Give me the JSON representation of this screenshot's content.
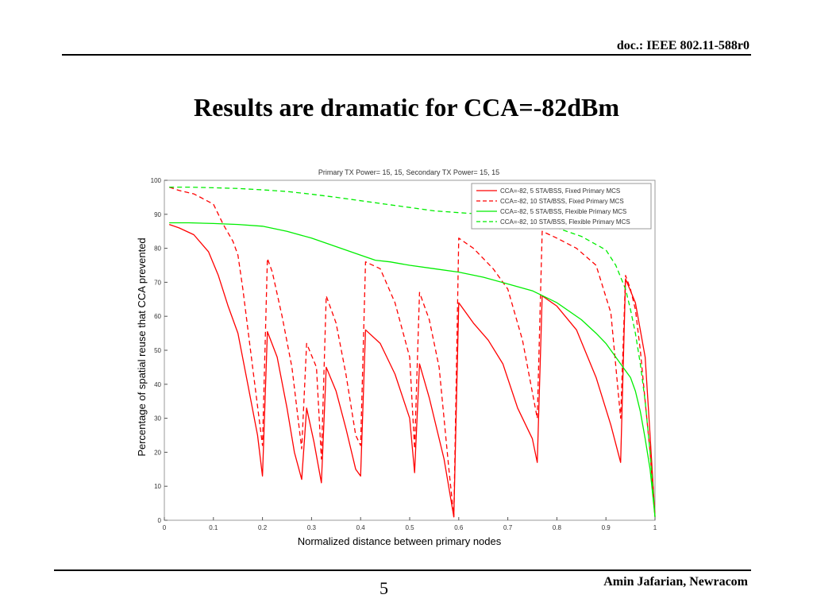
{
  "header": {
    "doc_id": "doc.: IEEE 802.11-588r0"
  },
  "slide": {
    "title": "Results are dramatic for CCA=-82dBm"
  },
  "footer": {
    "page_number": "5",
    "author": "Amin Jafarian, Newracom"
  },
  "chart_data": {
    "type": "line",
    "title": "Primary TX Power= 15, 15, Secondary TX Power= 15, 15",
    "xlabel": "Normalized distance between primary nodes",
    "ylabel": "Percentage of spatial reuse that CCA prevented",
    "xlim": [
      0,
      1
    ],
    "ylim": [
      0,
      100
    ],
    "xticks": [
      0,
      0.1,
      0.2,
      0.3,
      0.4,
      0.5,
      0.6,
      0.7,
      0.8,
      0.9,
      1
    ],
    "xtick_labels": [
      "0",
      "0.1",
      "0.2",
      "0.3",
      "0.4",
      "0.5",
      "0.6",
      "0.7",
      "0.8",
      "0.9",
      "1"
    ],
    "yticks": [
      0,
      10,
      20,
      30,
      40,
      50,
      60,
      70,
      80,
      90,
      100
    ],
    "ytick_labels": [
      "0",
      "10",
      "20",
      "30",
      "40",
      "50",
      "60",
      "70",
      "80",
      "90",
      "100"
    ],
    "grid": false,
    "legend_position": "top-right",
    "series": [
      {
        "name": "CCA=-82, 5 STA/BSS, Fixed Primary MCS",
        "color": "#ff0000",
        "dash": "solid",
        "x": [
          0.01,
          0.03,
          0.06,
          0.09,
          0.11,
          0.13,
          0.15,
          0.17,
          0.19,
          0.2,
          0.2,
          0.21,
          0.23,
          0.25,
          0.265,
          0.28,
          0.28,
          0.29,
          0.305,
          0.32,
          0.32,
          0.33,
          0.35,
          0.37,
          0.39,
          0.4,
          0.4,
          0.41,
          0.44,
          0.47,
          0.5,
          0.51,
          0.51,
          0.52,
          0.54,
          0.57,
          0.59,
          0.59,
          0.6,
          0.63,
          0.66,
          0.69,
          0.72,
          0.75,
          0.76,
          0.76,
          0.77,
          0.8,
          0.84,
          0.88,
          0.91,
          0.93,
          0.93,
          0.94,
          0.96,
          0.98,
          0.99,
          1.0
        ],
        "y": [
          87,
          86,
          84,
          79,
          72,
          63,
          55,
          40,
          25,
          13,
          13,
          55.5,
          48,
          33,
          20,
          12,
          12,
          33,
          23,
          11,
          11,
          45,
          38,
          27,
          15,
          13,
          13,
          56,
          52,
          43,
          30,
          14,
          14,
          46,
          36,
          18,
          1,
          1,
          64,
          58,
          53,
          46,
          33,
          24,
          17,
          17,
          66,
          63,
          56,
          42,
          28,
          17,
          17,
          71,
          64,
          48,
          25,
          1
        ]
      },
      {
        "name": "CCA=-82, 10 STA/BSS, Fixed Primary MCS",
        "color": "#ff0000",
        "dash": "dashed",
        "x": [
          0.01,
          0.03,
          0.06,
          0.1,
          0.12,
          0.14,
          0.15,
          0.16,
          0.18,
          0.2,
          0.2,
          0.21,
          0.22,
          0.24,
          0.26,
          0.28,
          0.28,
          0.29,
          0.31,
          0.32,
          0.32,
          0.33,
          0.35,
          0.37,
          0.39,
          0.4,
          0.4,
          0.41,
          0.44,
          0.47,
          0.5,
          0.51,
          0.51,
          0.52,
          0.54,
          0.56,
          0.58,
          0.59,
          0.59,
          0.6,
          0.63,
          0.67,
          0.7,
          0.73,
          0.76,
          0.76,
          0.77,
          0.8,
          0.84,
          0.88,
          0.91,
          0.93,
          0.93,
          0.94,
          0.95,
          0.96,
          0.97,
          0.98,
          0.99,
          1.0
        ],
        "y": [
          98,
          97,
          96,
          93,
          87,
          82,
          78,
          68,
          45,
          22,
          22,
          77,
          73,
          60,
          45,
          21,
          21,
          52,
          45,
          18,
          18,
          66,
          58,
          43,
          25,
          22,
          22,
          76,
          74,
          64,
          48,
          21,
          21,
          67,
          59,
          45,
          15,
          1,
          1,
          83,
          80,
          74,
          68,
          53,
          30,
          30,
          85,
          83,
          80,
          75,
          61,
          30,
          30,
          72,
          68,
          62,
          50,
          35,
          20,
          1
        ]
      },
      {
        "name": "CCA=-82, 5 STA/BSS, Flexible Primary MCS",
        "color": "#00ee00",
        "dash": "solid",
        "x": [
          0.01,
          0.05,
          0.1,
          0.15,
          0.2,
          0.25,
          0.3,
          0.35,
          0.4,
          0.43,
          0.46,
          0.5,
          0.55,
          0.6,
          0.65,
          0.7,
          0.75,
          0.8,
          0.85,
          0.88,
          0.9,
          0.92,
          0.94,
          0.95,
          0.96,
          0.97,
          0.98,
          0.99,
          0.995,
          1.0
        ],
        "y": [
          87.5,
          87.5,
          87.3,
          87,
          86.5,
          85,
          83,
          80.5,
          78,
          76.5,
          76,
          75,
          74,
          73,
          71.5,
          69.5,
          67.5,
          64,
          59,
          55,
          52,
          48,
          44,
          42,
          38,
          32,
          24,
          15,
          8,
          1
        ]
      },
      {
        "name": "CCA=-82, 10 STA/BSS, Flexible Primary MCS",
        "color": "#00ee00",
        "dash": "dashed",
        "x": [
          0.01,
          0.05,
          0.1,
          0.15,
          0.2,
          0.25,
          0.3,
          0.35,
          0.4,
          0.45,
          0.5,
          0.55,
          0.6,
          0.65,
          0.7,
          0.75,
          0.8,
          0.85,
          0.9,
          0.92,
          0.94,
          0.95,
          0.96,
          0.97,
          0.98,
          0.99,
          1.0
        ],
        "y": [
          98,
          98,
          97.8,
          97.6,
          97.2,
          96.7,
          95.9,
          95,
          94,
          93,
          92,
          91,
          90.5,
          90,
          89,
          87.5,
          86,
          83.5,
          79.5,
          75,
          68,
          62,
          55,
          46,
          35,
          20,
          1
        ]
      }
    ]
  }
}
